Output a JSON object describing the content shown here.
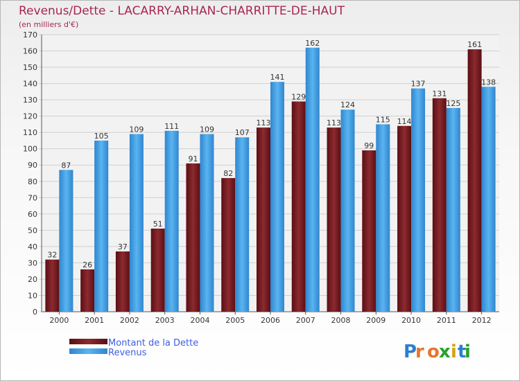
{
  "chart_data": {
    "type": "bar",
    "title": "Revenus/Dette - LACARRY-ARHAN-CHARRITTE-DE-HAUT",
    "subtitle": "(en milliers d'€)",
    "categories": [
      "2000",
      "2001",
      "2002",
      "2003",
      "2004",
      "2005",
      "2006",
      "2007",
      "2008",
      "2009",
      "2010",
      "2011",
      "2012"
    ],
    "series": [
      {
        "name": "Montant de la Dette",
        "color": "#7a1d22",
        "values": [
          32,
          26,
          37,
          51,
          91,
          82,
          113,
          129,
          113,
          99,
          114,
          131,
          161
        ]
      },
      {
        "name": "Revenus",
        "color": "#3a95db",
        "values": [
          87,
          105,
          109,
          111,
          109,
          107,
          141,
          162,
          124,
          115,
          137,
          125,
          138
        ]
      }
    ],
    "ylim": [
      0,
      170
    ],
    "ytick_step": 10,
    "grid": true,
    "legend_position": "bottom-left"
  },
  "logo": {
    "letters": [
      "P",
      "r",
      "o",
      "x",
      "i",
      "t",
      "i"
    ],
    "colors": [
      "#2a7fd0",
      "#e8742a",
      "#e8742a",
      "#2aa02a",
      "#d0a21a",
      "#2a7fd0",
      "#2aa02a"
    ]
  }
}
